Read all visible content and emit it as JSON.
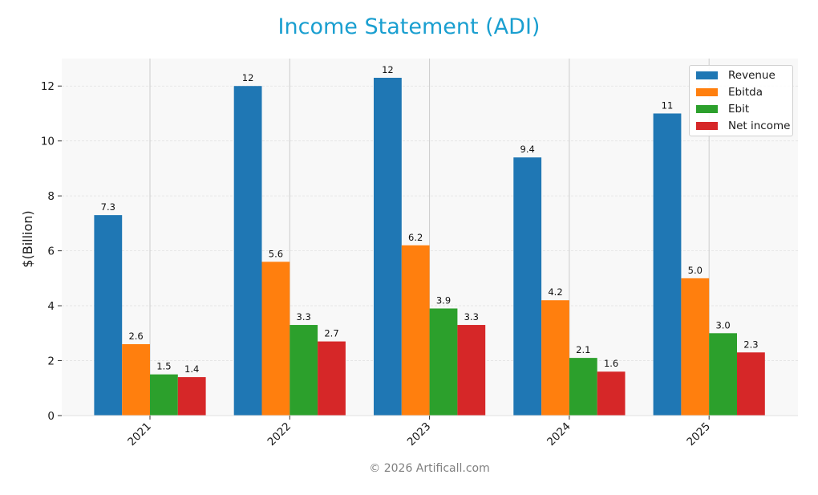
{
  "title": "Income Statement (ADI)",
  "footer": "© 2026 Artificall.com",
  "colors": {
    "title": "#1a9fd0",
    "revenue": "#1f77b4",
    "ebitda": "#ff7f0e",
    "ebit": "#2ca02c",
    "net_income": "#d62728",
    "plot_bg": "#f8f8f8"
  },
  "legend": [
    {
      "label": "Revenue",
      "color": "#1f77b4"
    },
    {
      "label": "Ebitda",
      "color": "#ff7f0e"
    },
    {
      "label": "Ebit",
      "color": "#2ca02c"
    },
    {
      "label": "Net income",
      "color": "#d62728"
    }
  ],
  "chart_data": {
    "type": "bar",
    "title": "Income Statement (ADI)",
    "xlabel": "",
    "ylabel": "$(Billion)",
    "categories": [
      "2021",
      "2022",
      "2023",
      "2024",
      "2025"
    ],
    "series": [
      {
        "name": "Revenue",
        "color": "#1f77b4",
        "values": [
          7.3,
          12.0,
          12.3,
          9.4,
          11.0
        ],
        "labels": [
          "7.3",
          "12",
          "12",
          "9.4",
          "11"
        ]
      },
      {
        "name": "Ebitda",
        "color": "#ff7f0e",
        "values": [
          2.6,
          5.6,
          6.2,
          4.2,
          5.0
        ],
        "labels": [
          "2.6",
          "5.6",
          "6.2",
          "4.2",
          "5.0"
        ]
      },
      {
        "name": "Ebit",
        "color": "#2ca02c",
        "values": [
          1.5,
          3.3,
          3.9,
          2.1,
          3.0
        ],
        "labels": [
          "1.5",
          "3.3",
          "3.9",
          "2.1",
          "3.0"
        ]
      },
      {
        "name": "Net income",
        "color": "#d62728",
        "values": [
          1.4,
          2.7,
          3.3,
          1.6,
          2.3
        ],
        "labels": [
          "1.4",
          "2.7",
          "3.3",
          "1.6",
          "2.3"
        ]
      }
    ],
    "yticks": [
      0,
      2,
      4,
      6,
      8,
      10,
      12
    ],
    "ylim": [
      0,
      13
    ],
    "grid": true,
    "legend_position": "upper right"
  }
}
